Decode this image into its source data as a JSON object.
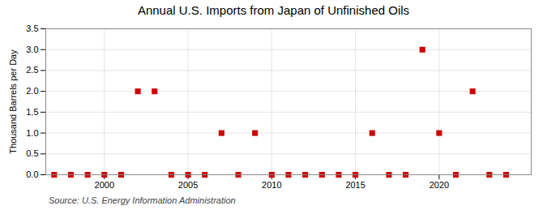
{
  "chart_data": {
    "type": "scatter",
    "title": "Annual U.S. Imports from Japan of Unfinished Oils",
    "ylabel": "Thousand Barrels per Day",
    "annotations": [
      "Source: U.S. Energy Information Administration"
    ],
    "x": [
      1997,
      1998,
      1999,
      2000,
      2001,
      2002,
      2003,
      2004,
      2005,
      2006,
      2007,
      2008,
      2009,
      2010,
      2011,
      2012,
      2013,
      2014,
      2015,
      2016,
      2017,
      2018,
      2019,
      2020,
      2021,
      2022,
      2023,
      2024
    ],
    "values": [
      0,
      0,
      0,
      0,
      0,
      2,
      2,
      0,
      0,
      0,
      1,
      0,
      1,
      0,
      0,
      0,
      0,
      0,
      0,
      1,
      0,
      0,
      3,
      1,
      0,
      2,
      0,
      0
    ],
    "color": "#cc0000",
    "marker": "square",
    "xlim": [
      1996.5,
      2025.5
    ],
    "ylim": [
      0,
      3.5
    ],
    "xticks": [
      2000,
      2005,
      2010,
      2015,
      2020
    ],
    "yticks": [
      {
        "value": 0,
        "label": "0.0"
      },
      0.5,
      {
        "value": 1,
        "label": "1.0"
      },
      1.5,
      {
        "value": 2,
        "label": "2.0"
      },
      2.5,
      {
        "value": 3,
        "label": "3.0"
      },
      3.5
    ],
    "grid": true
  }
}
